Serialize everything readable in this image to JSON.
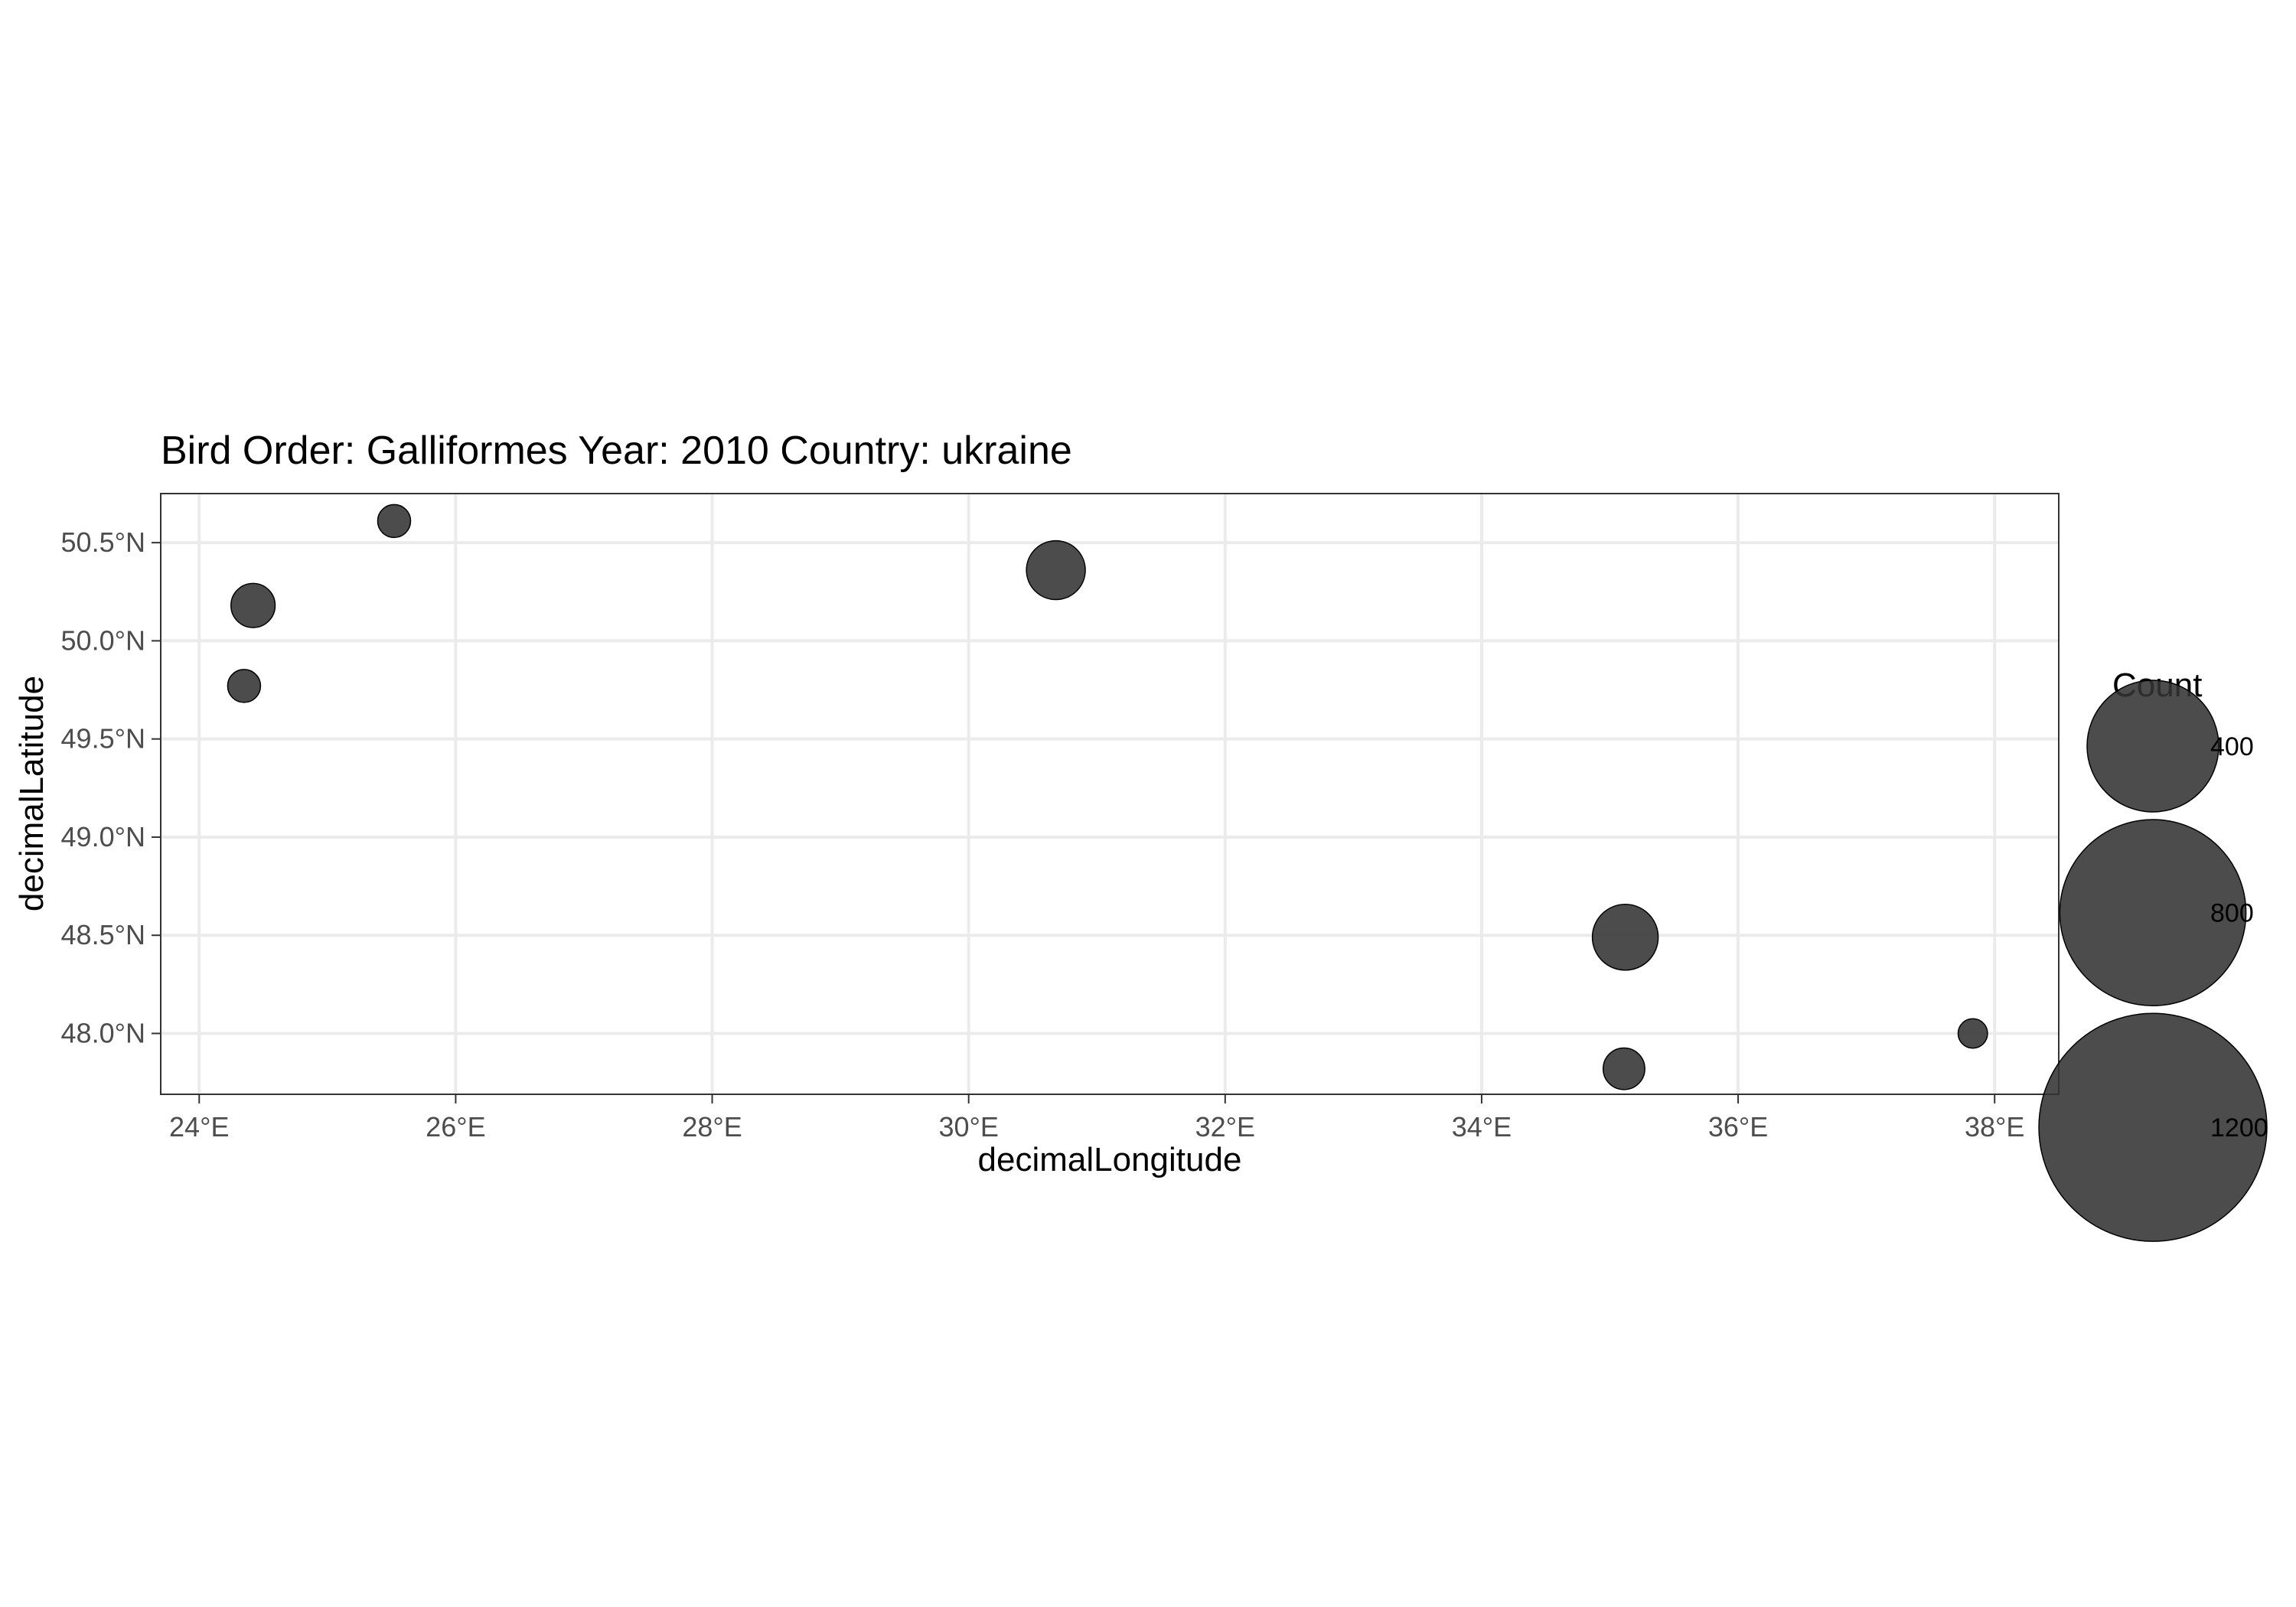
{
  "chart_data": {
    "type": "scatter",
    "title": "Bird Order: Galliformes Year: 2010 Country: ukraine",
    "xlabel": "decimalLongitude",
    "ylabel": "decimalLatitude",
    "x_ticks": [
      {
        "value": 24,
        "label": "24°E"
      },
      {
        "value": 26,
        "label": "26°E"
      },
      {
        "value": 28,
        "label": "28°E"
      },
      {
        "value": 30,
        "label": "30°E"
      },
      {
        "value": 32,
        "label": "32°E"
      },
      {
        "value": 34,
        "label": "34°E"
      },
      {
        "value": 36,
        "label": "36°E"
      },
      {
        "value": 38,
        "label": "38°E"
      }
    ],
    "y_ticks": [
      {
        "value": 48.0,
        "label": "48.0°N"
      },
      {
        "value": 48.5,
        "label": "48.5°N"
      },
      {
        "value": 49.0,
        "label": "49.0°N"
      },
      {
        "value": 49.5,
        "label": "49.5°N"
      },
      {
        "value": 50.0,
        "label": "50.0°N"
      },
      {
        "value": 50.5,
        "label": "50.5°N"
      }
    ],
    "xlim": [
      23.7,
      38.5
    ],
    "ylim": [
      47.69,
      50.75
    ],
    "grid": true,
    "size_legend": {
      "title": "Count",
      "entries": [
        {
          "value": 400,
          "label": "400"
        },
        {
          "value": 800,
          "label": "800"
        },
        {
          "value": 1200,
          "label": "1200"
        }
      ],
      "position": "right"
    },
    "points": [
      {
        "lon": 25.52,
        "lat": 50.61,
        "count": 25
      },
      {
        "lon": 30.68,
        "lat": 50.36,
        "count": 80
      },
      {
        "lon": 24.42,
        "lat": 50.18,
        "count": 45
      },
      {
        "lon": 24.35,
        "lat": 49.77,
        "count": 25
      },
      {
        "lon": 35.12,
        "lat": 48.49,
        "count": 100
      },
      {
        "lon": 37.83,
        "lat": 48.0,
        "count": 20
      },
      {
        "lon": 35.11,
        "lat": 47.82,
        "count": 40
      }
    ],
    "colors": {
      "point_fill": "#333333",
      "point_stroke": "#000000",
      "panel_border": "#333333",
      "grid": "#ebebeb"
    }
  }
}
